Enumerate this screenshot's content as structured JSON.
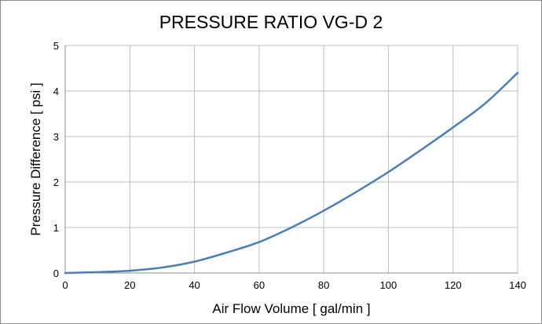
{
  "chart_data": {
    "type": "line",
    "title": "PRESSURE RATIO VG-D 2",
    "xlabel": "Air Flow Volume [ gal/min ]",
    "ylabel": "Pressure Difference [ psi ]",
    "xlim": [
      0,
      140
    ],
    "ylim": [
      0,
      5
    ],
    "x_ticks": [
      "0",
      "20",
      "40",
      "60",
      "80",
      "100",
      "120",
      "140"
    ],
    "y_ticks": [
      "0",
      "1",
      "2",
      "3",
      "4",
      "5"
    ],
    "grid": true,
    "legend": "none",
    "series": [
      {
        "color": "#4a7ebb",
        "points": [
          [
            0,
            0
          ],
          [
            10,
            0.02
          ],
          [
            20,
            0.05
          ],
          [
            30,
            0.12
          ],
          [
            40,
            0.25
          ],
          [
            50,
            0.45
          ],
          [
            60,
            0.68
          ],
          [
            70,
            1.0
          ],
          [
            80,
            1.37
          ],
          [
            90,
            1.78
          ],
          [
            100,
            2.22
          ],
          [
            110,
            2.7
          ],
          [
            120,
            3.2
          ],
          [
            130,
            3.73
          ],
          [
            140,
            4.4
          ]
        ]
      }
    ]
  }
}
